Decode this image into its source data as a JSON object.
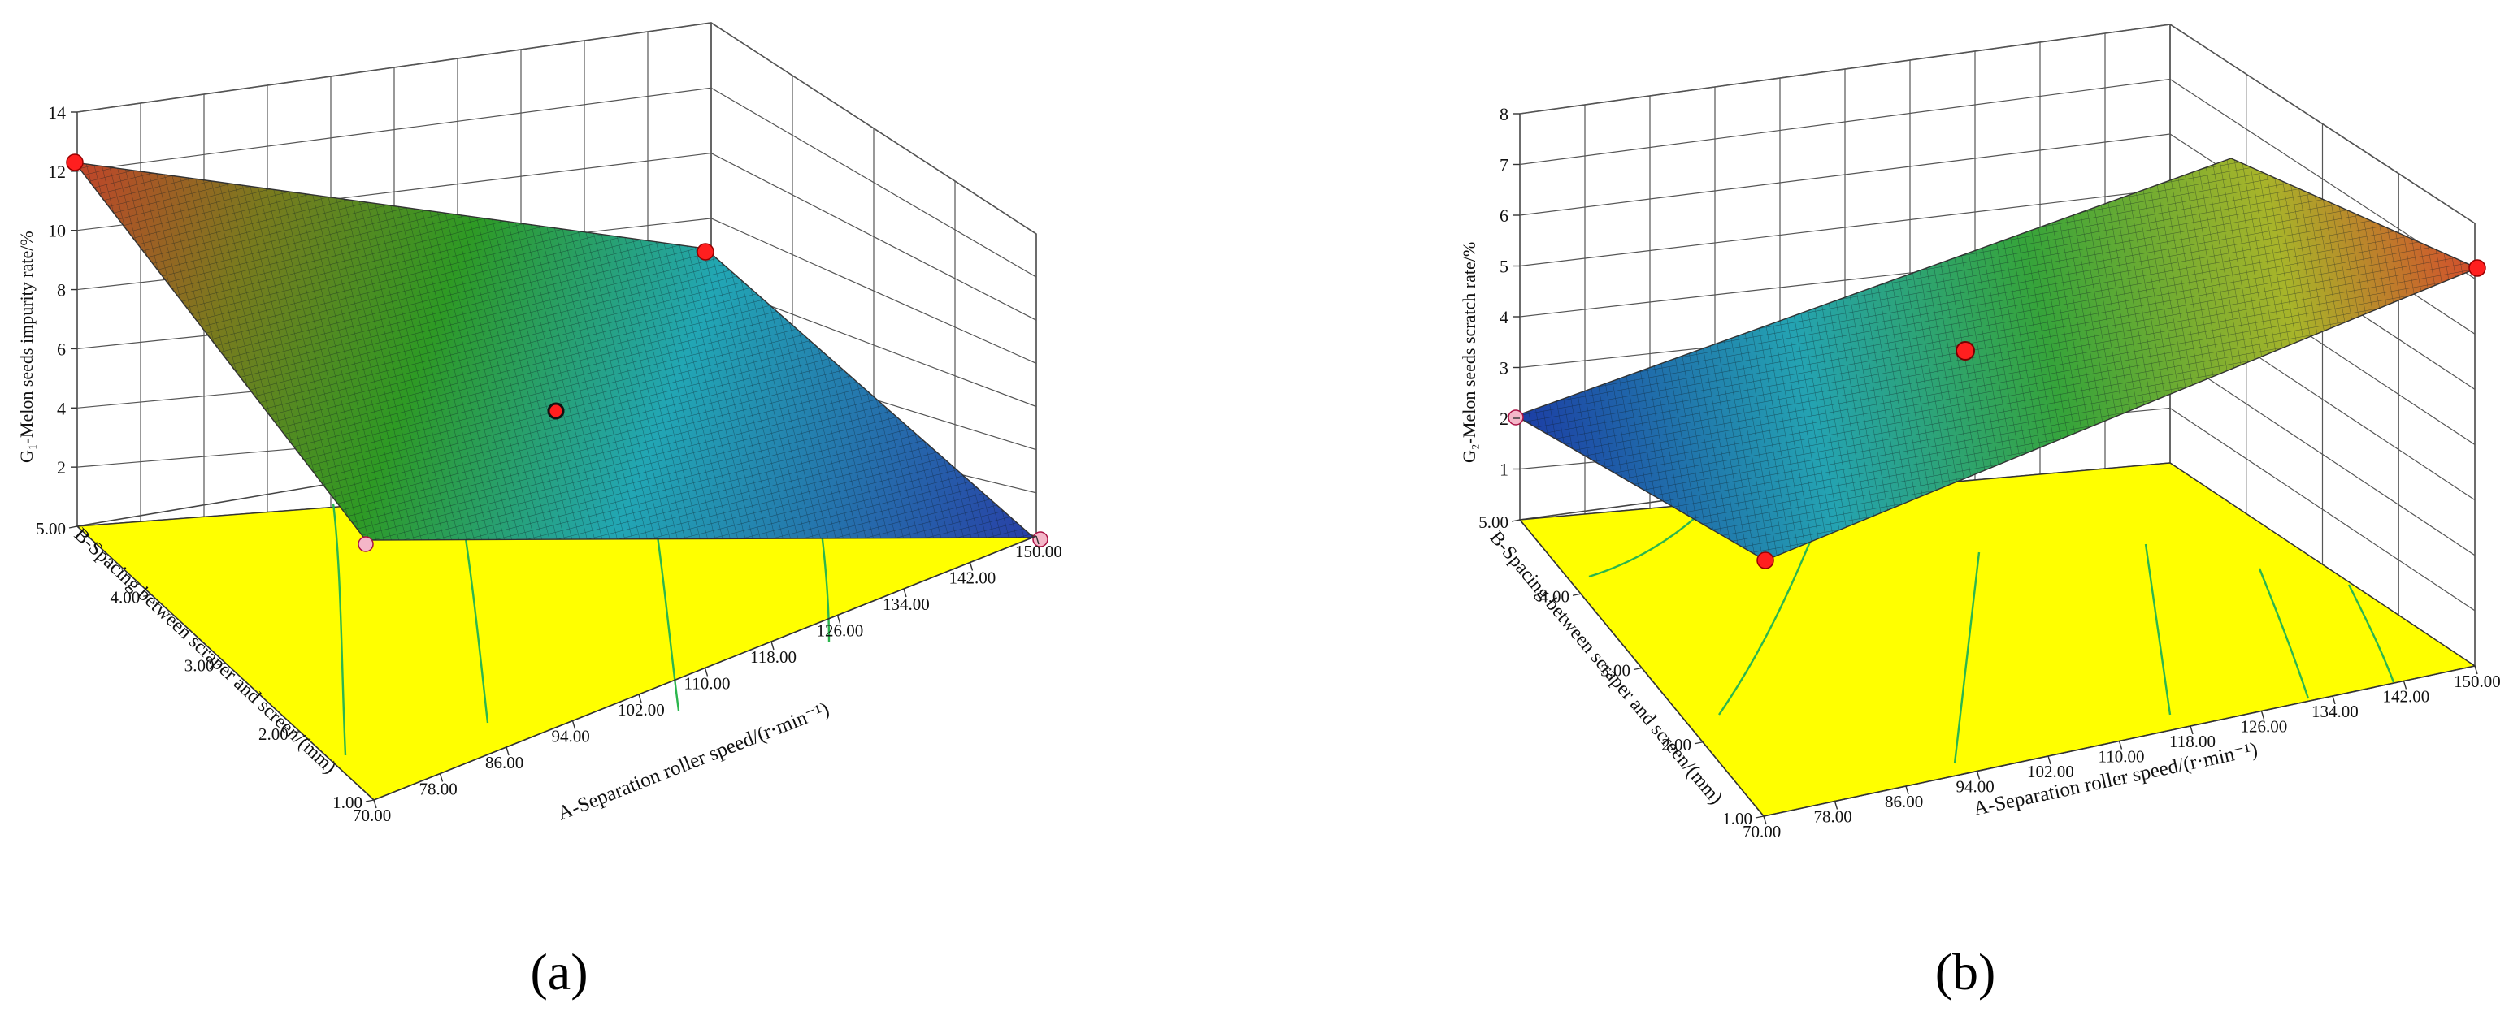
{
  "panel_labels": [
    "(a)",
    "(b)"
  ],
  "chart_data": [
    {
      "type": "surface3d",
      "panel": "(a)",
      "xlabel": "A-Separation roller speed/(r·min⁻¹)",
      "ylabel": "B-Spacing between scraper and screen/(mm)",
      "zlabel": "G₁-Melon seeds impurity rate/%",
      "x_ticks": [
        "70.00",
        "78.00",
        "86.00",
        "94.00",
        "102.00",
        "110.00",
        "118.00",
        "126.00",
        "134.00",
        "142.00",
        "150.00"
      ],
      "y_ticks": [
        "1.00",
        "2.00",
        "3.00",
        "4.00",
        "5.00"
      ],
      "z_ticks": [
        "2",
        "4",
        "6",
        "8",
        "10",
        "12",
        "14"
      ],
      "xlim": [
        70,
        150
      ],
      "ylim": [
        1,
        5
      ],
      "zlim": [
        0,
        14
      ],
      "corner_values": [
        {
          "x": 70,
          "y": 1,
          "z": 1.1
        },
        {
          "x": 150,
          "y": 1,
          "z": 1.3
        },
        {
          "x": 70,
          "y": 5,
          "z": 11.9
        },
        {
          "x": 150,
          "y": 5,
          "z": 8.4
        }
      ],
      "design_points": [
        {
          "x": 70,
          "y": 5,
          "z": 11.9
        },
        {
          "x": 150,
          "y": 5,
          "z": 8.4
        },
        {
          "x": 110,
          "y": 3,
          "z": 4.0
        },
        {
          "x": 70,
          "y": 1,
          "z": 1.1
        },
        {
          "x": 150,
          "y": 1,
          "z": 1.3
        }
      ],
      "floor_color": "#ffff00",
      "surface_colors": [
        "#1e3aa0",
        "#21a3b3",
        "#2a9a22",
        "#b7b227",
        "#c03a26"
      ]
    },
    {
      "type": "surface3d",
      "panel": "(b)",
      "xlabel": "A-Separation roller speed/(r·min⁻¹)",
      "ylabel": "B-Spacing between scraper and screen/(mm)",
      "zlabel": "G₂-Melon seeds scratch rate/%",
      "x_ticks": [
        "70.00",
        "78.00",
        "86.00",
        "94.00",
        "102.00",
        "110.00",
        "118.00",
        "126.00",
        "134.00",
        "142.00",
        "150.00"
      ],
      "y_ticks": [
        "1.00",
        "2.00",
        "3.00",
        "4.00",
        "5.00"
      ],
      "z_ticks": [
        "1",
        "2",
        "3",
        "4",
        "5",
        "6",
        "7",
        "8"
      ],
      "xlim": [
        70,
        150
      ],
      "ylim": [
        1,
        5
      ],
      "zlim": [
        0,
        8
      ],
      "corner_values": [
        {
          "x": 70,
          "y": 1,
          "z": 0.9
        },
        {
          "x": 150,
          "y": 1,
          "z": 6.0
        },
        {
          "x": 70,
          "y": 5,
          "z": 1.3
        },
        {
          "x": 150,
          "y": 5,
          "z": 6.4
        }
      ],
      "design_points": [
        {
          "x": 70,
          "y": 5,
          "z": 1.3
        },
        {
          "x": 150,
          "y": 1,
          "z": 6.0
        },
        {
          "x": 110,
          "y": 3,
          "z": 3.3
        },
        {
          "x": 70,
          "y": 1,
          "z": 0.9
        }
      ],
      "floor_color": "#ffff00",
      "surface_colors": [
        "#1e3aa0",
        "#21a3b3",
        "#2a9a22",
        "#b7b227",
        "#c03a26"
      ]
    }
  ]
}
